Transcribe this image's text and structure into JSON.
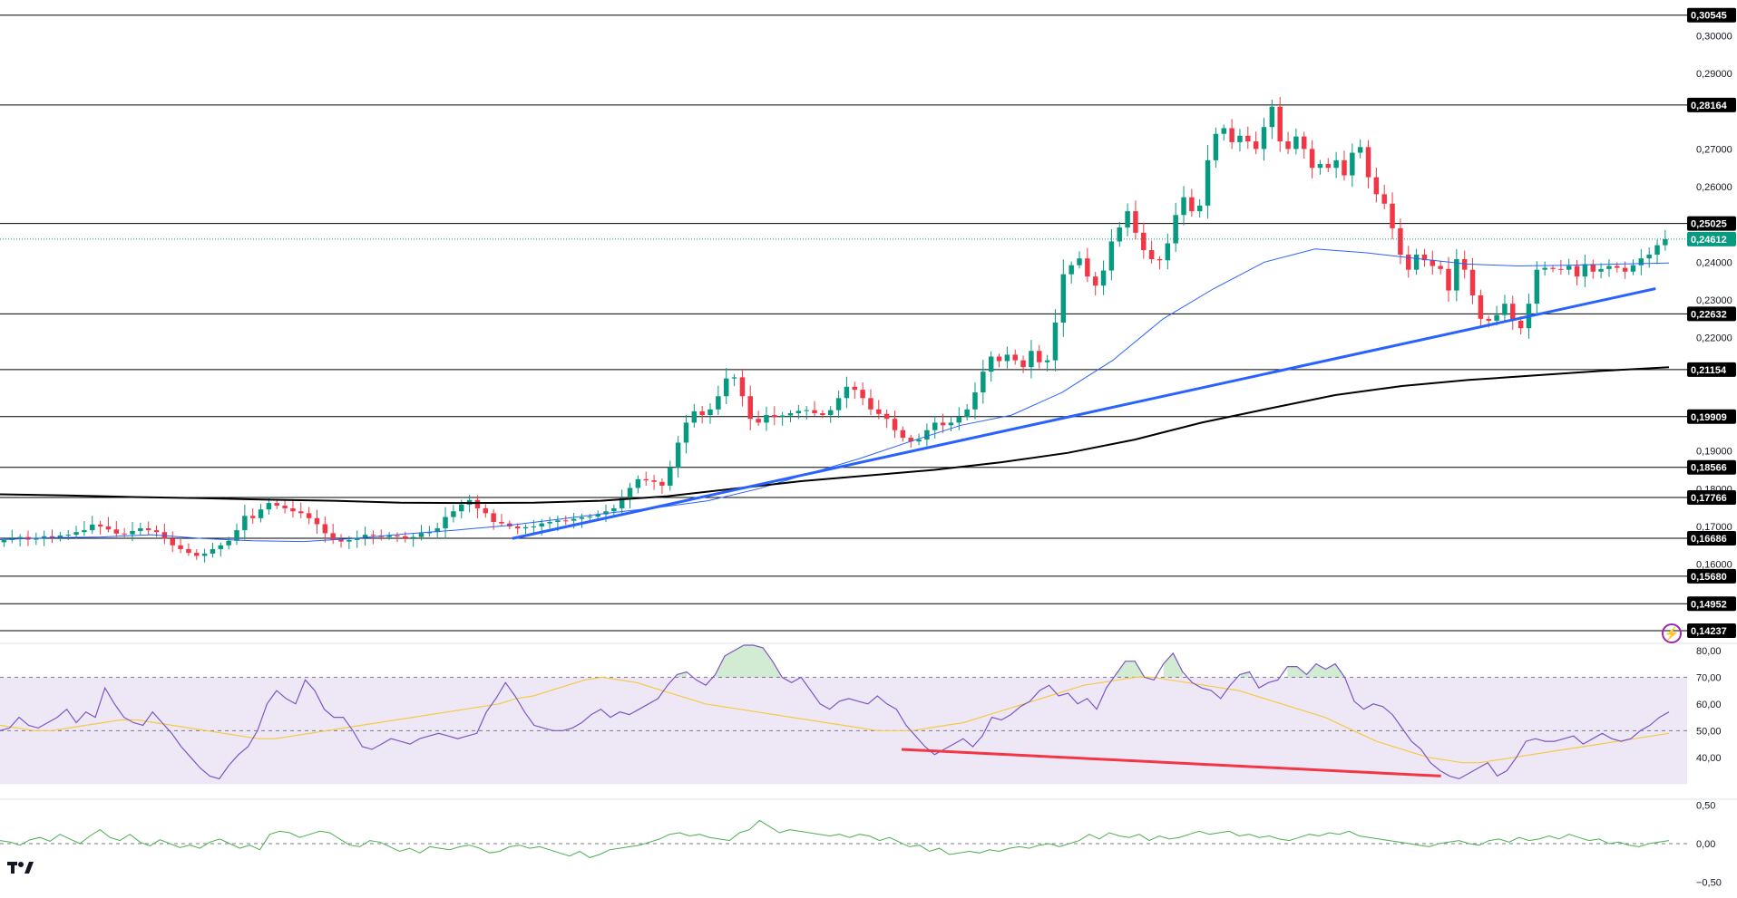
{
  "chart_data": [
    {
      "type": "candlestick",
      "title": "",
      "ylim": [
        0.1395,
        0.3085
      ],
      "y_ticks": [
        "0,30000",
        "0,29000",
        "0,27000",
        "0,26000",
        "0,24000",
        "0,23000",
        "0,22000",
        "0,19000",
        "0,18000",
        "0,17000",
        "0,16000"
      ],
      "y_tick_values": [
        0.3,
        0.29,
        0.27,
        0.26,
        0.24,
        0.23,
        0.22,
        0.19,
        0.18,
        0.17,
        0.16
      ],
      "horizontal_levels": [
        {
          "value": 0.30545,
          "label": "0,30545"
        },
        {
          "value": 0.28164,
          "label": "0,28164"
        },
        {
          "value": 0.25025,
          "label": "0,25025"
        },
        {
          "value": 0.22632,
          "label": "0,22632"
        },
        {
          "value": 0.21154,
          "label": "0,21154"
        },
        {
          "value": 0.19909,
          "label": "0,19909"
        },
        {
          "value": 0.18566,
          "label": "0,18566"
        },
        {
          "value": 0.17766,
          "label": "0,17766"
        },
        {
          "value": 0.16686,
          "label": "0,16686"
        },
        {
          "value": 0.1568,
          "label": "0,15680"
        },
        {
          "value": 0.14952,
          "label": "0,14952"
        },
        {
          "value": 0.14237,
          "label": "0,14237"
        }
      ],
      "current_price": {
        "value": 0.24612,
        "label": "0,24612"
      },
      "candle_close": [
        0.1664,
        0.1668,
        0.1672,
        0.1665,
        0.167,
        0.1674,
        0.1671,
        0.1676,
        0.1678,
        0.1685,
        0.169,
        0.1705,
        0.17,
        0.1692,
        0.1681,
        0.1679,
        0.1688,
        0.1695,
        0.169,
        0.1685,
        0.1668,
        0.165,
        0.164,
        0.163,
        0.1622,
        0.1628,
        0.164,
        0.165,
        0.1662,
        0.169,
        0.1728,
        0.1722,
        0.1745,
        0.1762,
        0.1755,
        0.1748,
        0.174,
        0.1735,
        0.1722,
        0.1706,
        0.1682,
        0.1665,
        0.166,
        0.1664,
        0.167,
        0.1678,
        0.1676,
        0.1672,
        0.1676,
        0.1674,
        0.1669,
        0.1672,
        0.1682,
        0.1685,
        0.1695,
        0.1725,
        0.174,
        0.1758,
        0.177,
        0.1748,
        0.1735,
        0.1712,
        0.1708,
        0.17,
        0.1695,
        0.1698,
        0.17,
        0.1708,
        0.1712,
        0.1716,
        0.1715,
        0.172,
        0.1724,
        0.1726,
        0.1732,
        0.174,
        0.1748,
        0.1775,
        0.1802,
        0.1825,
        0.1822,
        0.1818,
        0.1808,
        0.1856,
        0.1922,
        0.1975,
        0.2005,
        0.1995,
        0.201,
        0.2045,
        0.2092,
        0.2095,
        0.2045,
        0.1985,
        0.1975,
        0.1995,
        0.199,
        0.1994,
        0.2,
        0.2006,
        0.2008,
        0.2,
        0.1995,
        0.2008,
        0.204,
        0.207,
        0.2062,
        0.204,
        0.201,
        0.1998,
        0.1985,
        0.1955,
        0.1935,
        0.1925,
        0.193,
        0.1955,
        0.1975,
        0.1968,
        0.1975,
        0.199,
        0.201,
        0.2055,
        0.211,
        0.215,
        0.2138,
        0.2155,
        0.214,
        0.2122,
        0.2165,
        0.2135,
        0.214,
        0.224,
        0.2368,
        0.2392,
        0.241,
        0.2362,
        0.2338,
        0.2378,
        0.2455,
        0.2492,
        0.2535,
        0.2478,
        0.2432,
        0.2408,
        0.2405,
        0.245,
        0.2525,
        0.2572,
        0.2535,
        0.255,
        0.267,
        0.274,
        0.2755,
        0.2718,
        0.2735,
        0.272,
        0.27,
        0.2758,
        0.2812,
        0.272,
        0.27,
        0.2733,
        0.27,
        0.265,
        0.266,
        0.265,
        0.267,
        0.263,
        0.269,
        0.2705,
        0.2625,
        0.258,
        0.2555,
        0.249,
        0.242,
        0.238,
        0.242,
        0.2405,
        0.239,
        0.2382,
        0.2325,
        0.2408,
        0.238,
        0.2312,
        0.225,
        0.2245,
        0.226,
        0.229,
        0.2245,
        0.2225,
        0.229,
        0.238,
        0.2385,
        0.2382,
        0.238,
        0.239,
        0.2362,
        0.2395,
        0.2375,
        0.2382,
        0.239,
        0.2385,
        0.2375,
        0.2392,
        0.241,
        0.242,
        0.2445,
        0.2461
      ],
      "moving_averages": [
        {
          "color": "#2962ff",
          "values": [
            0.1665,
            0.167,
            0.1672,
            0.1678,
            0.1668,
            0.1662,
            0.166,
            0.1668,
            0.168,
            0.169,
            0.1702,
            0.1718,
            0.1735,
            0.175,
            0.1768,
            0.18,
            0.184,
            0.188,
            0.1925,
            0.1968,
            0.1995,
            0.2055,
            0.214,
            0.225,
            0.233,
            0.24,
            0.2435,
            0.2425,
            0.241,
            0.2395,
            0.239,
            0.2392,
            0.2395,
            0.2398
          ]
        },
        {
          "color": "#000000",
          "values": [
            0.1785,
            0.1782,
            0.1778,
            0.1775,
            0.1771,
            0.1768,
            0.1763,
            0.1762,
            0.1763,
            0.1768,
            0.178,
            0.18,
            0.182,
            0.1835,
            0.185,
            0.187,
            0.1895,
            0.193,
            0.1975,
            0.2012,
            0.2048,
            0.2072,
            0.2088,
            0.21,
            0.2112,
            0.2122
          ]
        }
      ],
      "trendlines": [
        {
          "color": "#2962ff",
          "from": [
            0.304,
            0.1668
          ],
          "to": [
            0.977,
            0.233
          ]
        }
      ]
    },
    {
      "type": "line",
      "title": "",
      "ylim": [
        25,
        82
      ],
      "y_ticks": [
        "80,00",
        "70,00",
        "60,00",
        "50,00",
        "40,00"
      ],
      "y_tick_values": [
        80,
        70,
        60,
        50,
        40
      ],
      "band": [
        30,
        70
      ],
      "rsi_values": [
        50,
        51,
        55,
        52,
        51,
        53,
        55,
        58,
        53,
        57,
        55,
        66,
        60,
        55,
        53,
        52,
        57,
        53,
        49,
        44,
        40,
        36,
        33,
        32,
        37,
        41,
        44,
        50,
        60,
        65,
        62,
        60,
        69,
        65,
        58,
        55,
        55,
        50,
        44,
        43,
        45,
        47,
        46,
        45,
        47,
        48,
        49,
        48,
        47,
        48,
        49,
        57,
        62,
        68,
        63,
        57,
        52,
        51,
        50,
        50,
        51,
        53,
        56,
        58,
        55,
        57,
        56,
        58,
        60,
        62,
        67,
        71,
        72,
        69,
        67,
        71,
        78,
        80,
        82,
        83,
        81,
        76,
        70,
        68,
        70,
        65,
        60,
        58,
        61,
        62,
        61,
        60,
        63,
        60,
        58,
        52,
        48,
        44,
        41,
        43,
        45,
        47,
        44,
        48,
        55,
        54,
        56,
        59,
        61,
        65,
        67,
        63,
        64,
        60,
        62,
        58,
        66,
        71,
        76,
        76,
        70,
        69,
        75,
        79,
        72,
        68,
        66,
        65,
        62,
        67,
        71,
        72,
        66,
        68,
        69,
        74,
        74,
        71,
        75,
        73,
        75,
        70,
        61,
        58,
        60,
        59,
        56,
        51,
        46,
        43,
        38,
        35,
        33,
        32,
        34,
        36,
        38,
        33,
        35,
        40,
        46,
        47,
        46,
        46,
        47,
        48,
        45,
        47,
        49,
        47,
        46,
        47,
        50,
        52,
        55,
        57
      ],
      "signal_values": [
        52,
        51,
        50,
        50,
        51,
        52,
        53,
        54,
        54,
        53,
        52,
        51,
        50,
        49,
        48,
        47,
        47,
        48,
        49,
        50,
        51,
        52,
        53,
        54,
        55,
        56,
        57,
        58,
        59,
        60,
        62,
        63,
        65,
        67,
        69,
        70,
        69,
        68,
        66,
        64,
        62,
        60,
        59,
        58,
        57,
        56,
        55,
        54,
        53,
        52,
        51,
        50,
        50,
        50,
        51,
        52,
        53,
        55,
        57,
        59,
        61,
        63,
        65,
        67,
        68,
        69,
        70,
        70,
        69,
        68,
        67,
        66,
        65,
        63,
        61,
        59,
        57,
        55,
        52,
        49,
        46,
        44,
        42,
        40,
        39,
        38,
        38,
        39,
        40,
        41,
        42,
        43,
        44,
        45,
        46,
        47,
        48,
        49
      ],
      "divergence": {
        "color": "#f23645",
        "from": [
          0.535,
          43
        ],
        "to": [
          0.855,
          33
        ]
      }
    },
    {
      "type": "line",
      "title": "",
      "ylim": [
        -0.55,
        0.55
      ],
      "y_ticks": [
        "0,50",
        "0,00",
        "−0,50"
      ],
      "y_tick_values": [
        0.5,
        0,
        -0.5
      ],
      "zero_line": 0,
      "values": [
        0.04,
        0.02,
        -0.02,
        0.05,
        0.08,
        0.03,
        0.12,
        0.06,
        0.0,
        0.1,
        0.18,
        0.08,
        0.04,
        0.12,
        0.02,
        -0.03,
        0.05,
        0.0,
        -0.05,
        -0.02,
        -0.06,
        0.02,
        0.06,
        0.0,
        -0.06,
        -0.02,
        -0.08,
        0.12,
        0.16,
        0.14,
        0.08,
        0.12,
        0.16,
        0.14,
        0.06,
        -0.02,
        -0.04,
        0.04,
        0.02,
        -0.04,
        -0.1,
        -0.06,
        -0.12,
        -0.04,
        -0.06,
        -0.08,
        -0.04,
        -0.02,
        -0.06,
        -0.12,
        -0.1,
        -0.04,
        -0.02,
        -0.06,
        -0.04,
        -0.08,
        -0.12,
        -0.16,
        -0.1,
        -0.18,
        -0.14,
        -0.08,
        -0.06,
        -0.04,
        -0.02,
        0.02,
        0.06,
        0.12,
        0.14,
        0.1,
        0.12,
        0.08,
        0.06,
        0.04,
        0.14,
        0.18,
        0.3,
        0.22,
        0.14,
        0.18,
        0.16,
        0.14,
        0.12,
        0.1,
        0.12,
        0.08,
        0.12,
        0.1,
        0.04,
        0.08,
        0.02,
        -0.04,
        -0.02,
        -0.1,
        -0.06,
        -0.14,
        -0.12,
        -0.1,
        -0.12,
        -0.08,
        -0.1,
        -0.06,
        -0.04,
        -0.06,
        -0.02,
        0.0,
        -0.04,
        0.0,
        0.04,
        0.12,
        0.06,
        0.14,
        0.1,
        0.08,
        0.12,
        0.04,
        0.1,
        0.06,
        0.08,
        0.12,
        0.16,
        0.12,
        0.14,
        0.16,
        0.1,
        0.12,
        0.08,
        0.1,
        0.06,
        0.04,
        0.08,
        0.12,
        0.1,
        0.14,
        0.12,
        0.16,
        0.1,
        0.08,
        0.06,
        0.04,
        0.02,
        0.0,
        -0.02,
        -0.04,
        0.0,
        0.02,
        0.04,
        0.0,
        -0.02,
        0.04,
        0.06,
        0.02,
        0.08,
        0.04,
        0.06,
        0.1,
        0.06,
        0.12,
        0.08,
        0.04,
        0.06,
        0.0,
        0.02,
        -0.02,
        -0.04,
        0.0,
        0.02,
        0.04
      ]
    }
  ],
  "branding": {
    "logo_text": "17"
  },
  "alert": {
    "icon": "lightning-icon",
    "glyph": "⚡",
    "color": "#9c27b0"
  },
  "colors": {
    "up": "#089981",
    "down": "#f23645",
    "rsi": "#7e57c2",
    "rsi_signal": "#f7c948",
    "rsi_band": "#ede7f6",
    "osc": "#4caf50",
    "level_line": "#000000"
  }
}
